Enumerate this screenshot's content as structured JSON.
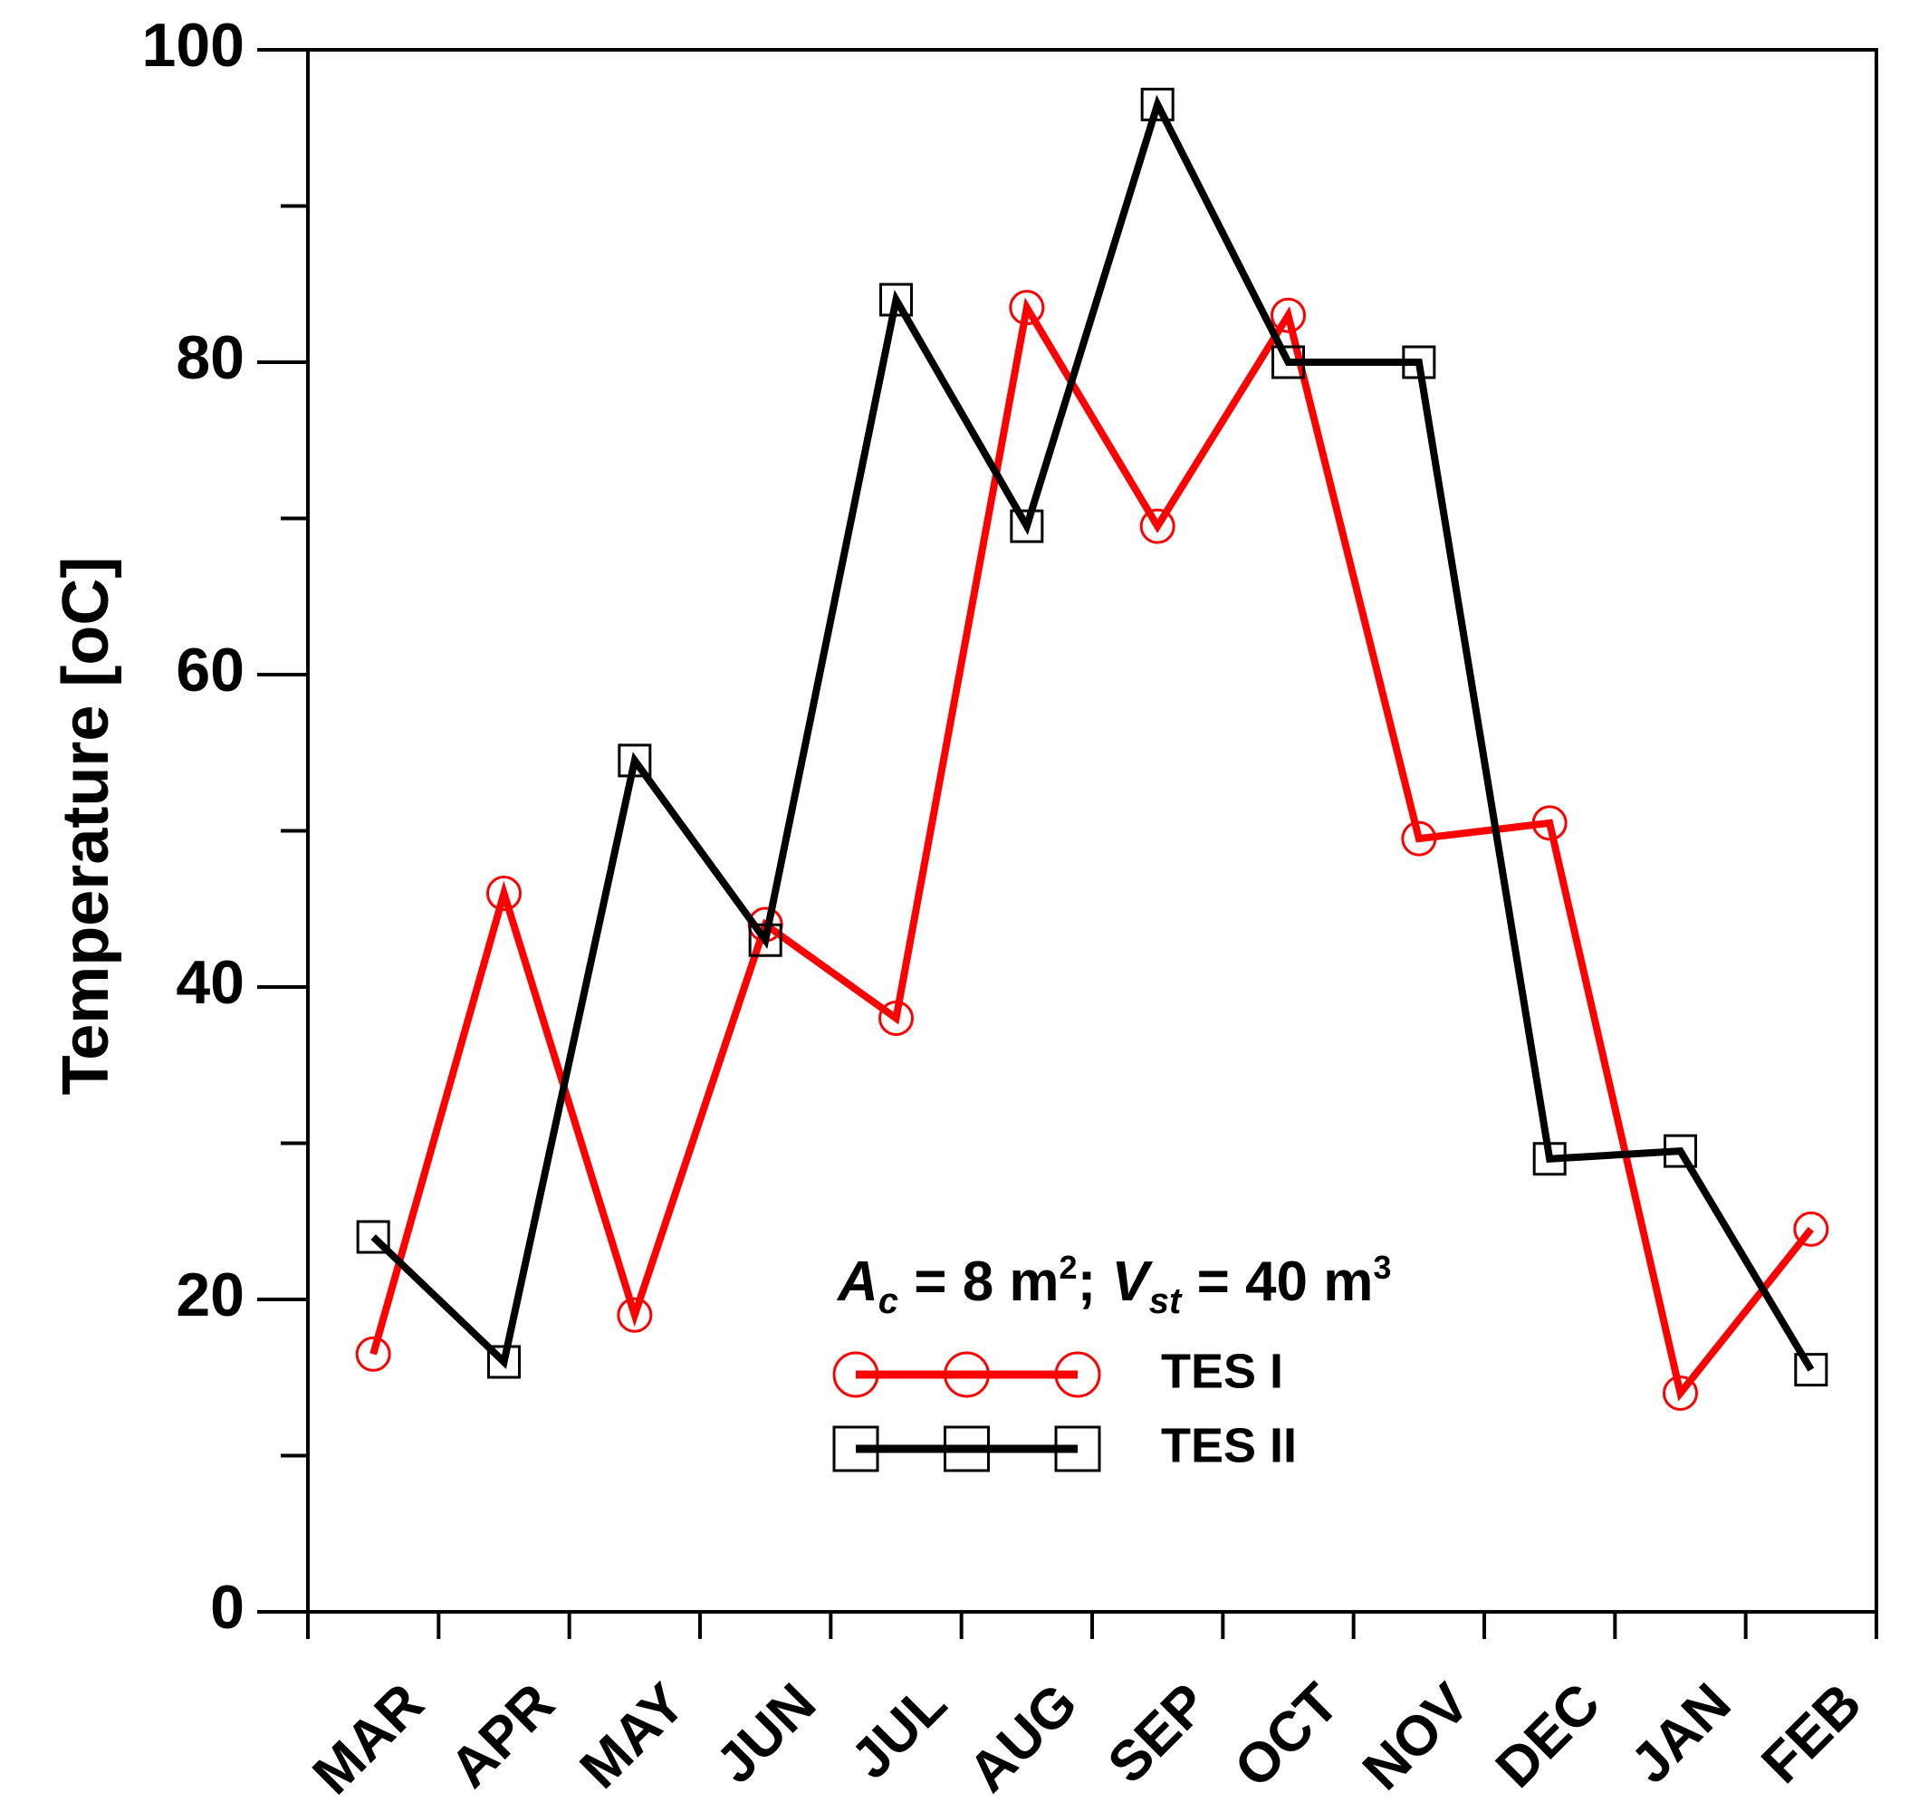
{
  "chart_data": {
    "type": "line",
    "title": "",
    "xlabel": "",
    "ylabel": "Temperature [oC]",
    "ylim": [
      0,
      100
    ],
    "y_ticks": [
      0,
      20,
      40,
      60,
      80,
      100
    ],
    "y_minor_ticks": [
      10,
      30,
      50,
      70,
      90
    ],
    "categories": [
      "MAR",
      "APR",
      "MAY",
      "JUN",
      "JUL",
      "AUG",
      "SEP",
      "OCT",
      "NOV",
      "DEC",
      "JAN",
      "FEB"
    ],
    "legend": {
      "title_parts": [
        "A",
        "c",
        " = 8 m",
        "2",
        "; ",
        "V",
        "st",
        " = 40 m",
        "3"
      ],
      "placement": "bottom-center"
    },
    "series": [
      {
        "name": "TES I",
        "color": "#ff0000",
        "marker": "circle",
        "values": [
          16.5,
          46,
          19,
          44,
          38,
          83.5,
          69.5,
          83,
          49.5,
          50.5,
          14,
          24.5
        ]
      },
      {
        "name": "TES II",
        "color": "#000000",
        "marker": "square",
        "values": [
          24,
          16,
          54.5,
          43,
          84,
          69.5,
          96.5,
          80,
          80,
          29,
          29.5,
          15.5
        ]
      }
    ]
  }
}
